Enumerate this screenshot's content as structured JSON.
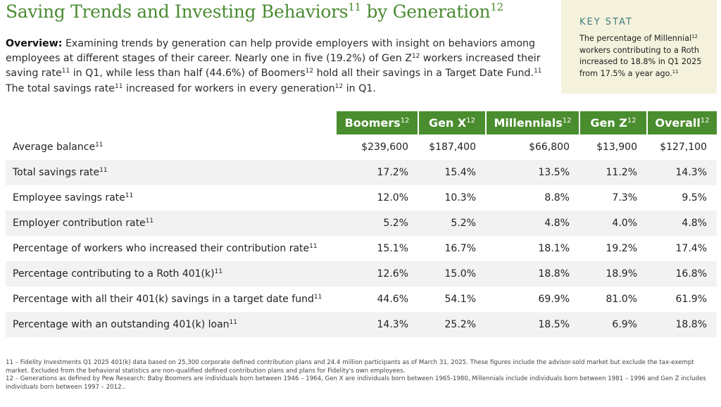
{
  "header": {
    "title_part1": "Saving Trends and Investing Behaviors",
    "title_sup1": "11",
    "title_part2": " by Generation",
    "title_sup2": "12"
  },
  "overview": {
    "lead": "Overview:",
    "s1": " Examining trends by generation can help provide employers with insight on behaviors among employees at different stages of their career. Nearly one in five (19.2%) of Gen Z",
    "sup1": "12",
    "s2": " workers increased their saving rate",
    "sup2": "11",
    "s3": " in Q1, while less than half (44.6%) of Boomers",
    "sup3": "12",
    "s4": " hold all their savings in a Target Date Fund.",
    "sup4": "11",
    "s5": " The total savings rate",
    "sup5": "11",
    "s6": " increased for workers in every generation",
    "sup6": "12",
    "s7": " in Q1."
  },
  "key_stat": {
    "label": "KEY STAT",
    "t1": "The percentage of Millennial",
    "sup1": "12",
    "t2": " workers contributing to a Roth increased to 18.8% in Q1 2025 from 17.5% a year ago.",
    "sup2": "11"
  },
  "table": {
    "columns": [
      {
        "label": "Boomers",
        "sup": "12"
      },
      {
        "label": "Gen X",
        "sup": "12"
      },
      {
        "label": "Millennials",
        "sup": "12"
      },
      {
        "label": "Gen Z",
        "sup": "12"
      },
      {
        "label": "Overall",
        "sup": "12"
      }
    ],
    "rows": [
      {
        "label": "Average balance",
        "sup": "11",
        "values": [
          "$239,600",
          "$187,400",
          "$66,800",
          "$13,900",
          "$127,100"
        ]
      },
      {
        "label": "Total savings rate",
        "sup": "11",
        "values": [
          "17.2%",
          "15.4%",
          "13.5%",
          "11.2%",
          "14.3%"
        ]
      },
      {
        "label": "Employee savings rate",
        "sup": "11",
        "values": [
          "12.0%",
          "10.3%",
          "8.8%",
          "7.3%",
          "9.5%"
        ]
      },
      {
        "label": "Employer contribution rate",
        "sup": "11",
        "values": [
          "5.2%",
          "5.2%",
          "4.8%",
          "4.0%",
          "4.8%"
        ]
      },
      {
        "label": "Percentage of workers who increased their contribution rate",
        "sup": "11",
        "values": [
          "15.1%",
          "16.7%",
          "18.1%",
          "19.2%",
          "17.4%"
        ]
      },
      {
        "label": "Percentage contributing to a Roth 401(k)",
        "sup": "11",
        "values": [
          "12.6%",
          "15.0%",
          "18.8%",
          "18.9%",
          "16.8%"
        ]
      },
      {
        "label": "Percentage with all their 401(k) savings in a target date fund",
        "sup": "11",
        "values": [
          "44.6%",
          "54.1%",
          "69.9%",
          "81.0%",
          "61.9%"
        ]
      },
      {
        "label": "Percentage with an outstanding 401(k) loan",
        "sup": "11",
        "values": [
          "14.3%",
          "25.2%",
          "18.5%",
          "6.9%",
          "18.8%"
        ]
      }
    ]
  },
  "footnotes": [
    "11 – Fidelity Investments Q1 2025 401(k) data based on 25,300 corporate defined contribution plans and 24.4 million participants as of March 31, 2025. These figures include the advisor-sold market but exclude the tax-exempt market. Excluded from the behavioral statistics are non-qualified defined contribution plans and plans for Fidelity's own employees.",
    "12 – Generations as defined by Pew Research: Baby Boomers are individuals born between 1946 – 1964, Gen X are individuals born between 1965-1980, Millennials include individuals born between 1981 – 1996 and Gen Z includes individuals born between 1997 – 2012.."
  ],
  "colors": {
    "title_green": "#4a8b32",
    "header_green": "#4a8d2e",
    "key_stat_bg": "#f4f1dc",
    "key_stat_label": "#3f7e7e",
    "row_alt": "#f2f2f2"
  }
}
